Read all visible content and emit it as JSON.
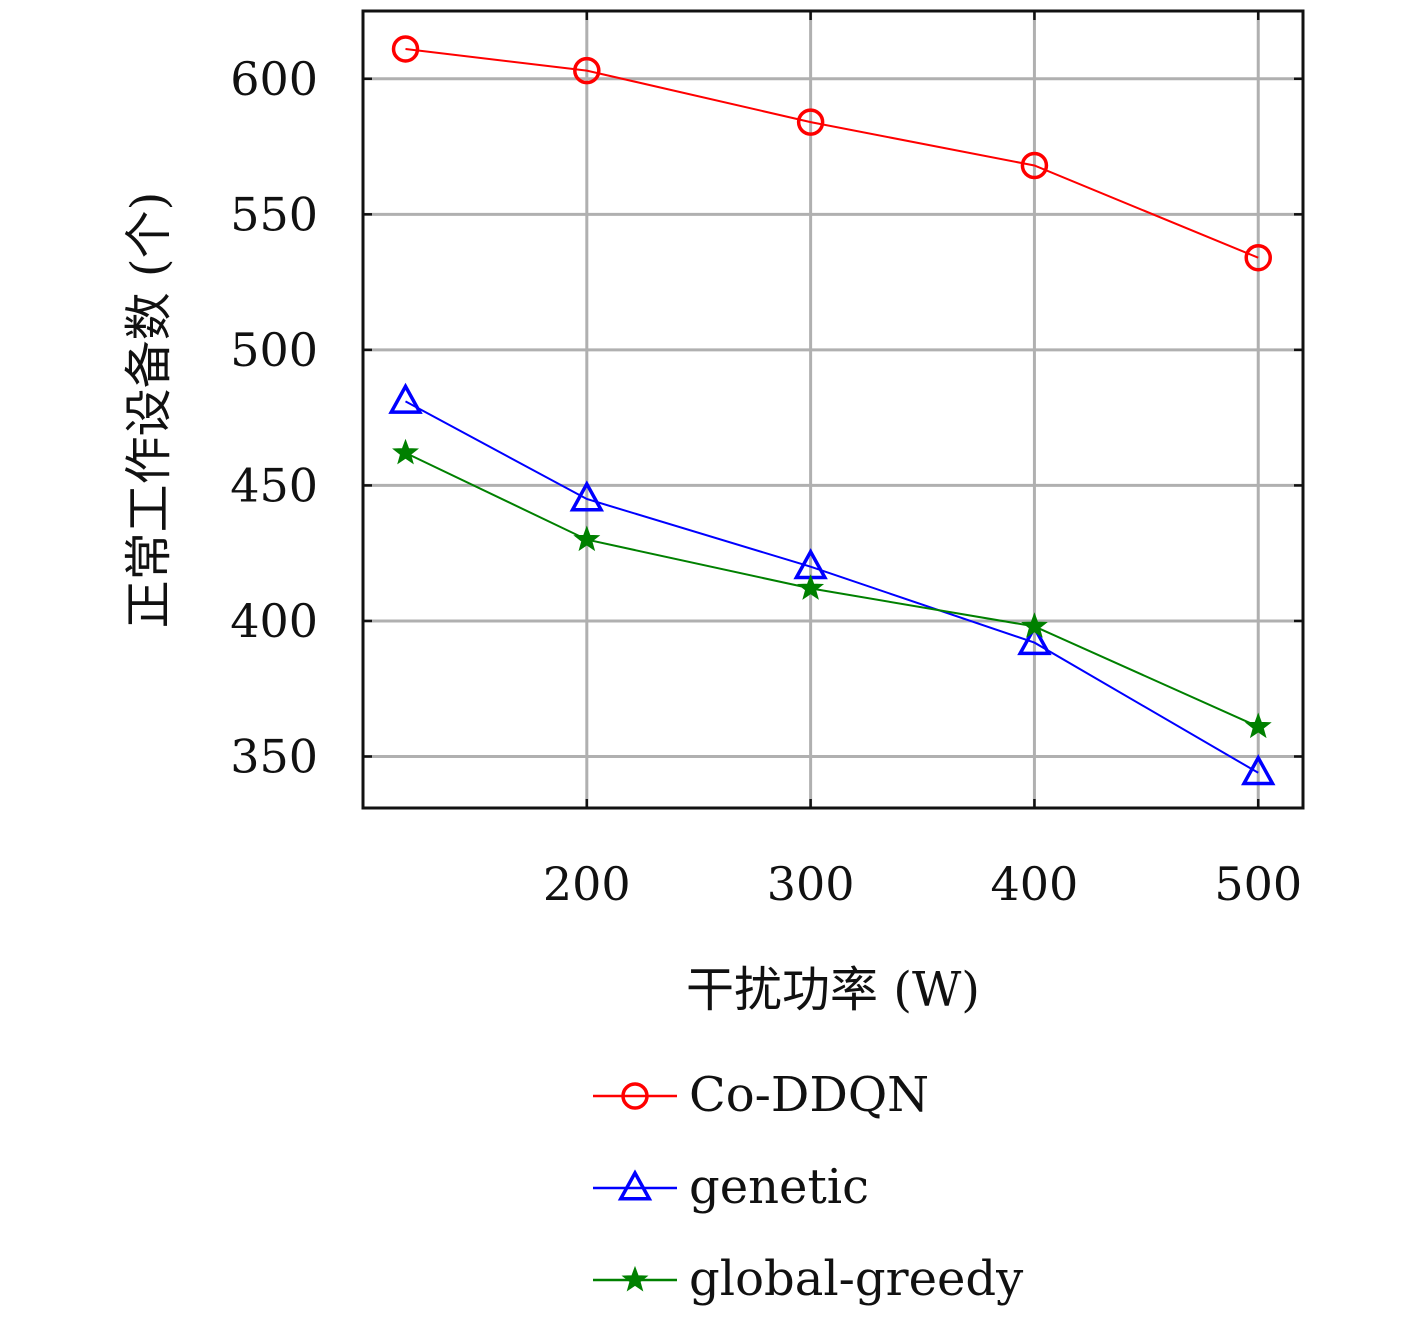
{
  "chart_data": {
    "type": "line",
    "xlabel": "干扰功率 (W)",
    "ylabel": "正常工作设备数 (个)",
    "xlim": [
      100,
      520
    ],
    "ylim": [
      331,
      625
    ],
    "x_ticks": [
      200,
      300,
      400,
      500
    ],
    "y_ticks": [
      350,
      400,
      450,
      500,
      550,
      600
    ],
    "grid": true,
    "legend_position": "below plot",
    "x": [
      119,
      200,
      300,
      400,
      500
    ],
    "series": [
      {
        "name": "Co-DDQN",
        "color": "#ff0000",
        "marker": "circle",
        "values": [
          611,
          603,
          584,
          568,
          534
        ]
      },
      {
        "name": "genetic",
        "color": "#0000ff",
        "marker": "triangle",
        "values": [
          481,
          445,
          420,
          392,
          344
        ]
      },
      {
        "name": "global-greedy",
        "color": "#008000",
        "marker": "star",
        "values": [
          462,
          430,
          412,
          398,
          361
        ]
      }
    ]
  }
}
